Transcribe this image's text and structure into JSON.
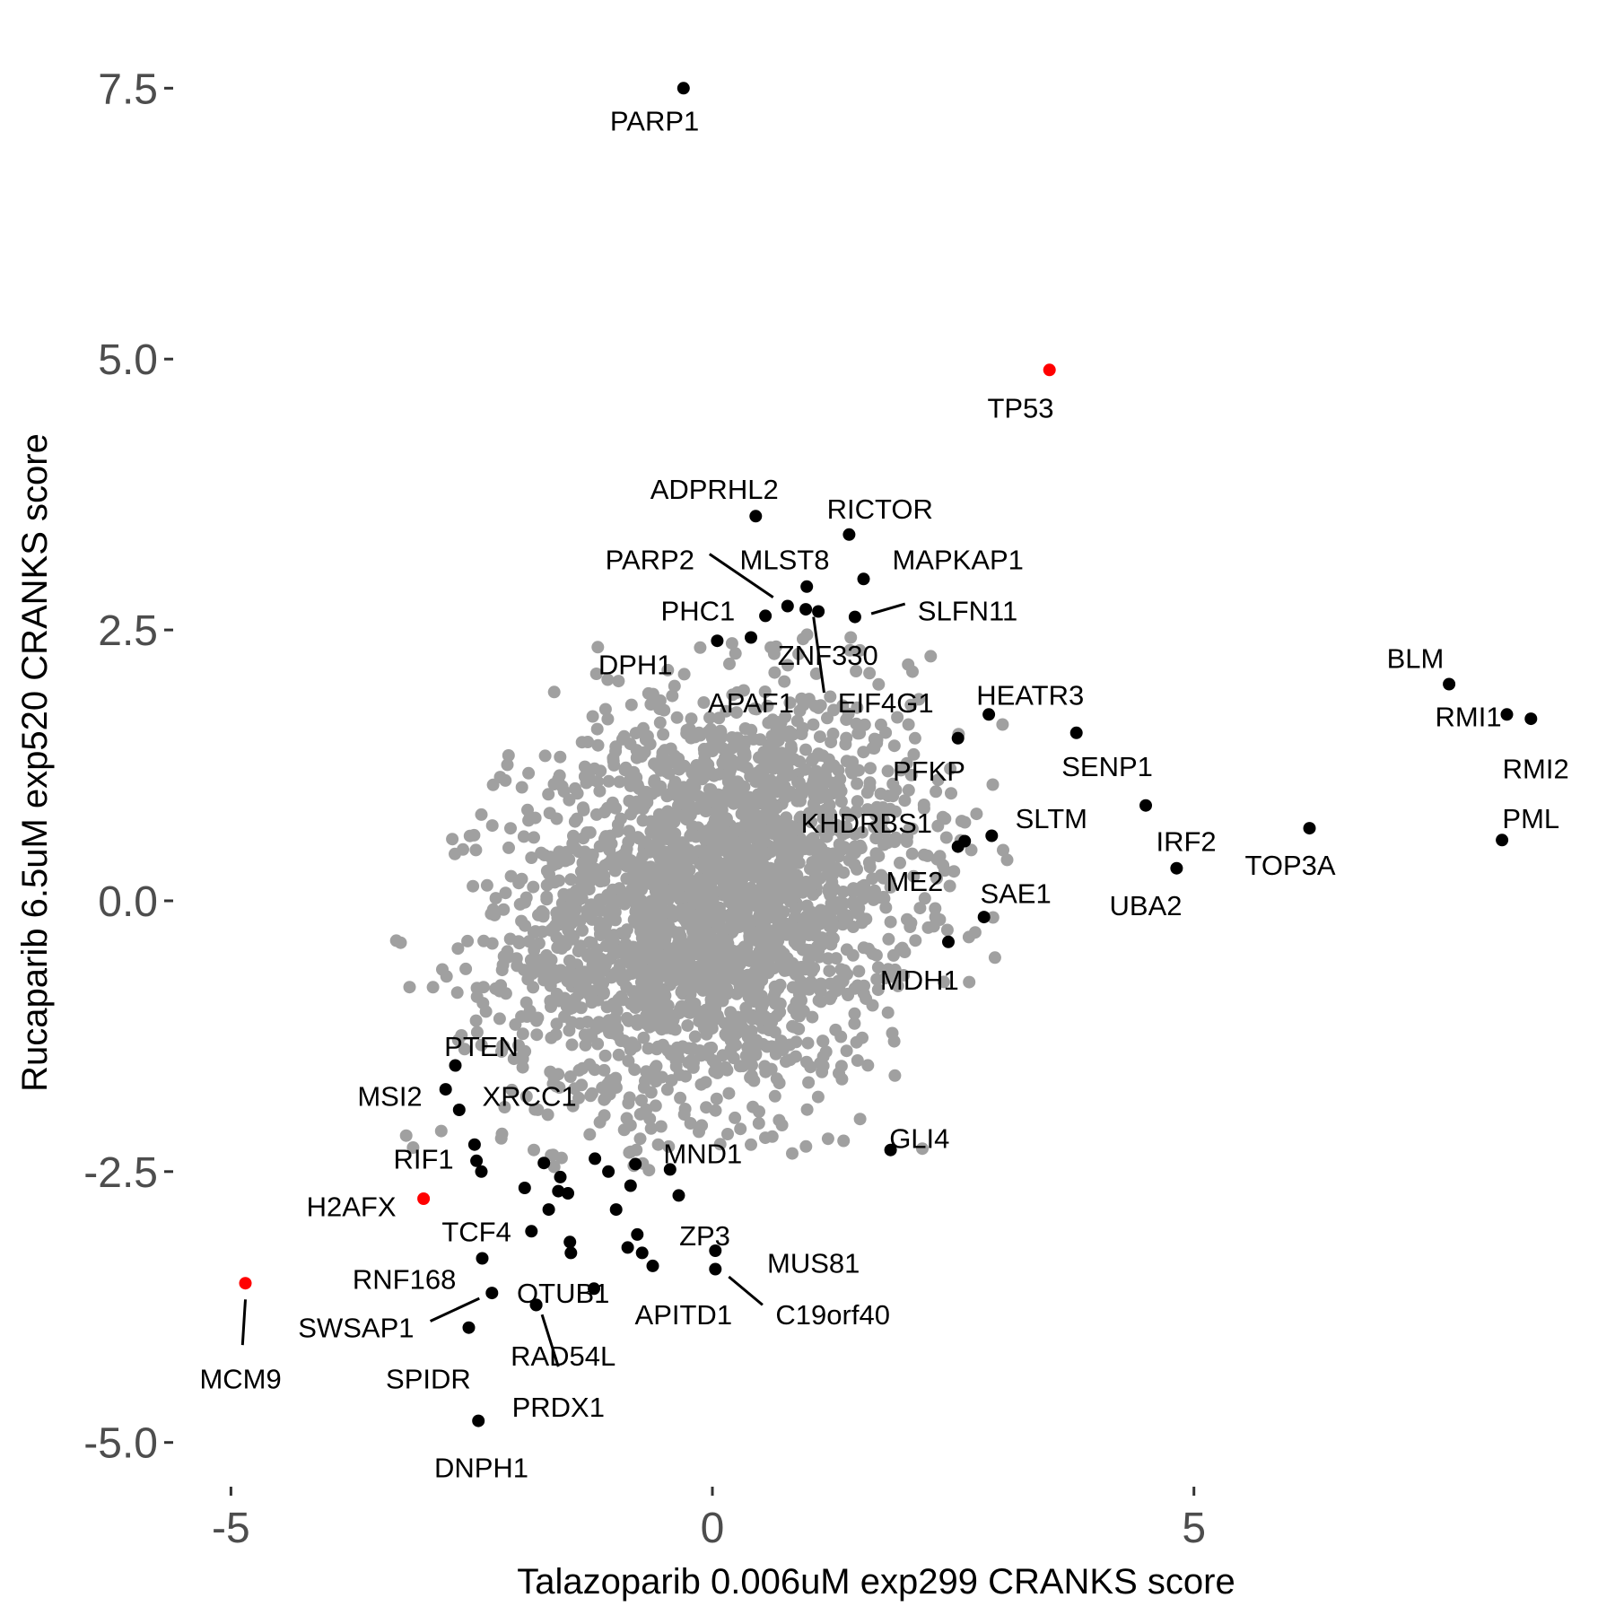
{
  "chart_data": {
    "type": "scatter",
    "xlabel": "Talazoparib 0.006uM exp299 CRANKS score",
    "ylabel": "Rucaparib 6.5uM exp520 CRANKS score",
    "xlim": [
      -5.6,
      9.0
    ],
    "ylim": [
      -5.35,
      7.9
    ],
    "x_ticks": [
      -5,
      0,
      5
    ],
    "x_tick_labels": [
      "-5",
      "0",
      "5"
    ],
    "y_ticks": [
      -5.0,
      -2.5,
      0.0,
      2.5,
      5.0,
      7.5
    ],
    "y_tick_labels": [
      "-5.0",
      "-2.5",
      "0.0",
      "2.5",
      "5.0",
      "7.5"
    ],
    "grid": false,
    "legend": "none",
    "colors": {
      "background": "#bfbfbf",
      "highlight": "#000000",
      "special": "#ff0000",
      "text": "#000000",
      "tick": "#4d4d4d"
    },
    "background_cloud": {
      "color": "#a0a0a0",
      "center": [
        0.0,
        0.0
      ],
      "sd": [
        1.05,
        0.95
      ],
      "correlation": 0.2
    },
    "points": [
      {
        "label": "PARP1",
        "x": -0.3,
        "y": 7.5,
        "color": "#000000"
      },
      {
        "label": "TP53",
        "x": 3.5,
        "y": 4.9,
        "color": "#ff0000"
      },
      {
        "label": "ADPRHL2",
        "x": 0.45,
        "y": 3.55,
        "color": "#000000"
      },
      {
        "label": "RICTOR",
        "x": 1.42,
        "y": 3.38,
        "color": "#000000"
      },
      {
        "label": "MAPKAP1",
        "x": 1.57,
        "y": 2.97,
        "color": "#000000"
      },
      {
        "label": "MLST8",
        "x": 0.98,
        "y": 2.9,
        "color": "#000000"
      },
      {
        "label": "PARP2",
        "x": 0.78,
        "y": 2.72,
        "color": "#000000"
      },
      {
        "label": "PHC1",
        "x": 0.55,
        "y": 2.63,
        "color": "#000000"
      },
      {
        "label": "ZNF330",
        "x": 0.97,
        "y": 2.69,
        "color": "#000000"
      },
      {
        "label": "EIF4G1",
        "x": 1.1,
        "y": 2.67,
        "color": "#000000"
      },
      {
        "label": "SLFN11",
        "x": 1.48,
        "y": 2.62,
        "color": "#000000"
      },
      {
        "label": "DPH1",
        "x": 0.05,
        "y": 2.4,
        "color": "#000000"
      },
      {
        "label": "APAF1",
        "x": 0.4,
        "y": 2.43,
        "color": "#000000"
      },
      {
        "label": "BLM",
        "x": 7.65,
        "y": 2.0,
        "color": "#000000"
      },
      {
        "label": "RMI1",
        "x": 8.25,
        "y": 1.72,
        "color": "#000000"
      },
      {
        "label": "RMI2",
        "x": 8.5,
        "y": 1.68,
        "color": "#000000"
      },
      {
        "label": "HEATR3",
        "x": 2.87,
        "y": 1.72,
        "color": "#000000"
      },
      {
        "label": "SENP1",
        "x": 3.78,
        "y": 1.55,
        "color": "#000000"
      },
      {
        "label": "PFKP",
        "x": 2.55,
        "y": 1.5,
        "color": "#000000"
      },
      {
        "label": "IRF2",
        "x": 4.5,
        "y": 0.88,
        "color": "#000000"
      },
      {
        "label": "TOP3A",
        "x": 6.2,
        "y": 0.67,
        "color": "#000000"
      },
      {
        "label": "PML",
        "x": 8.2,
        "y": 0.56,
        "color": "#000000"
      },
      {
        "label": "SLTM",
        "x": 2.9,
        "y": 0.6,
        "color": "#000000"
      },
      {
        "label": "KHDRBS1",
        "x": 2.62,
        "y": 0.55,
        "color": "#000000"
      },
      {
        "label": "ME2",
        "x": 2.55,
        "y": 0.5,
        "color": "#000000"
      },
      {
        "label": "UBA2",
        "x": 4.82,
        "y": 0.3,
        "color": "#000000"
      },
      {
        "label": "SAE1",
        "x": 2.82,
        "y": -0.15,
        "color": "#000000"
      },
      {
        "label": "MDH1",
        "x": 2.45,
        "y": -0.38,
        "color": "#000000"
      },
      {
        "label": "PTEN",
        "x": -2.67,
        "y": -1.52,
        "color": "#000000"
      },
      {
        "label": "MSI2",
        "x": -2.77,
        "y": -1.74,
        "color": "#000000"
      },
      {
        "label": "XRCC1",
        "x": -2.63,
        "y": -1.93,
        "color": "#000000"
      },
      {
        "label": "RIF1",
        "x": -2.47,
        "y": -2.25,
        "color": "#000000"
      },
      {
        "label": "H2AFX",
        "x": -3.0,
        "y": -2.75,
        "color": "#ff0000"
      },
      {
        "label": "TCF4",
        "x": -1.6,
        "y": -2.68,
        "color": "#000000"
      },
      {
        "label": "MND1",
        "x": -0.44,
        "y": -2.48,
        "color": "#000000"
      },
      {
        "label": "ZP3",
        "x": -0.35,
        "y": -2.72,
        "color": "#000000"
      },
      {
        "label": "GLI4",
        "x": 1.85,
        "y": -2.3,
        "color": "#000000"
      },
      {
        "label": "MUS81",
        "x": 0.03,
        "y": -3.23,
        "color": "#000000"
      },
      {
        "label": "C19orf40",
        "x": 0.03,
        "y": -3.4,
        "color": "#000000"
      },
      {
        "label": "APITD1",
        "x": -0.62,
        "y": -3.37,
        "color": "#000000"
      },
      {
        "label": "RNF168",
        "x": -2.39,
        "y": -3.3,
        "color": "#000000"
      },
      {
        "label": "OTUB1",
        "x": -1.23,
        "y": -3.58,
        "color": "#000000"
      },
      {
        "label": "SWSAP1",
        "x": -2.29,
        "y": -3.62,
        "color": "#000000"
      },
      {
        "label": "RAD54L",
        "x": -1.83,
        "y": -3.73,
        "color": "#000000"
      },
      {
        "label": "PRDX1",
        "x": -1.83,
        "y": -3.73,
        "color": "#000000"
      },
      {
        "label": "SPIDR",
        "x": -2.53,
        "y": -3.94,
        "color": "#000000"
      },
      {
        "label": "MCM9",
        "x": -4.85,
        "y": -3.53,
        "color": "#ff0000"
      },
      {
        "label": "DNPH1",
        "x": -2.43,
        "y": -4.8,
        "color": "#000000"
      }
    ],
    "unlabeled_points": [
      {
        "x": -2.45,
        "y": -2.4,
        "color": "#000000"
      },
      {
        "x": -2.4,
        "y": -2.5,
        "color": "#000000"
      },
      {
        "x": -1.95,
        "y": -2.65,
        "color": "#000000"
      },
      {
        "x": -1.75,
        "y": -2.42,
        "color": "#000000"
      },
      {
        "x": -1.58,
        "y": -2.55,
        "color": "#000000"
      },
      {
        "x": -1.5,
        "y": -2.7,
        "color": "#000000"
      },
      {
        "x": -1.7,
        "y": -2.85,
        "color": "#000000"
      },
      {
        "x": -1.22,
        "y": -2.38,
        "color": "#000000"
      },
      {
        "x": -1.08,
        "y": -2.5,
        "color": "#000000"
      },
      {
        "x": -1.0,
        "y": -2.85,
        "color": "#000000"
      },
      {
        "x": -0.85,
        "y": -2.63,
        "color": "#000000"
      },
      {
        "x": -0.8,
        "y": -2.43,
        "color": "#000000"
      },
      {
        "x": -1.88,
        "y": -3.05,
        "color": "#000000"
      },
      {
        "x": -1.48,
        "y": -3.15,
        "color": "#000000"
      },
      {
        "x": -1.47,
        "y": -3.25,
        "color": "#000000"
      },
      {
        "x": -0.88,
        "y": -3.2,
        "color": "#000000"
      },
      {
        "x": -0.78,
        "y": -3.08,
        "color": "#000000"
      },
      {
        "x": -0.73,
        "y": -3.25,
        "color": "#000000"
      }
    ],
    "leader_lines": [
      {
        "label": "PARP2",
        "from": [
          -0.03,
          3.2
        ],
        "to": [
          0.63,
          2.8
        ]
      },
      {
        "label": "EIF4G1",
        "from": [
          1.05,
          2.62
        ],
        "to": [
          1.16,
          1.92
        ]
      },
      {
        "label": "SLFN11",
        "from": [
          1.65,
          2.65
        ],
        "to": [
          2.0,
          2.74
        ]
      },
      {
        "label": "SWSAP1",
        "from": [
          -2.93,
          -3.88
        ],
        "to": [
          -2.42,
          -3.67
        ]
      },
      {
        "label": "PRDX1",
        "from": [
          -1.77,
          -3.82
        ],
        "to": [
          -1.6,
          -4.3
        ]
      },
      {
        "label": "MCM9",
        "from": [
          -4.85,
          -3.68
        ],
        "to": [
          -4.88,
          -4.1
        ]
      },
      {
        "label": "C19orf40",
        "from": [
          0.17,
          -3.47
        ],
        "to": [
          0.52,
          -3.73
        ]
      }
    ]
  },
  "labels": [
    {
      "text": "PARP1",
      "x": -0.6,
      "y": 7.2
    },
    {
      "text": "TP53",
      "x": 3.2,
      "y": 4.55
    },
    {
      "text": "ADPRHL2",
      "x": 0.02,
      "y": 3.8
    },
    {
      "text": "RICTOR",
      "x": 1.74,
      "y": 3.62
    },
    {
      "text": "MAPKAP1",
      "x": 2.55,
      "y": 3.15
    },
    {
      "text": "PARP2",
      "x": -0.65,
      "y": 3.15
    },
    {
      "text": "MLST8",
      "x": 0.75,
      "y": 3.15
    },
    {
      "text": "PHC1",
      "x": -0.15,
      "y": 2.68
    },
    {
      "text": "SLFN11",
      "x": 2.65,
      "y": 2.68
    },
    {
      "text": "ZNF330",
      "x": 1.2,
      "y": 2.27
    },
    {
      "text": "DPH1",
      "x": -0.8,
      "y": 2.18
    },
    {
      "text": "HEATR3",
      "x": 3.3,
      "y": 1.9
    },
    {
      "text": "BLM",
      "x": 7.3,
      "y": 2.24
    },
    {
      "text": "APAF1",
      "x": 0.4,
      "y": 1.83
    },
    {
      "text": "EIF4G1",
      "x": 1.8,
      "y": 1.83
    },
    {
      "text": "RMI1",
      "x": 7.85,
      "y": 1.7
    },
    {
      "text": "RMI2",
      "x": 8.55,
      "y": 1.22
    },
    {
      "text": "SENP1",
      "x": 4.1,
      "y": 1.24
    },
    {
      "text": "PFKP",
      "x": 2.25,
      "y": 1.2
    },
    {
      "text": "PML",
      "x": 8.5,
      "y": 0.76
    },
    {
      "text": "KHDRBS1",
      "x": 1.6,
      "y": 0.72
    },
    {
      "text": "SLTM",
      "x": 3.52,
      "y": 0.76
    },
    {
      "text": "IRF2",
      "x": 4.92,
      "y": 0.55
    },
    {
      "text": "TOP3A",
      "x": 6.0,
      "y": 0.33
    },
    {
      "text": "ME2",
      "x": 2.1,
      "y": 0.18
    },
    {
      "text": "SAE1",
      "x": 3.15,
      "y": 0.07
    },
    {
      "text": "UBA2",
      "x": 4.5,
      "y": -0.04
    },
    {
      "text": "MDH1",
      "x": 2.15,
      "y": -0.73
    },
    {
      "text": "PTEN",
      "x": -2.4,
      "y": -1.34
    },
    {
      "text": "MSI2",
      "x": -3.35,
      "y": -1.8
    },
    {
      "text": "XRCC1",
      "x": -1.9,
      "y": -1.8
    },
    {
      "text": "RIF1",
      "x": -3.0,
      "y": -2.38
    },
    {
      "text": "MND1",
      "x": -0.1,
      "y": -2.33
    },
    {
      "text": "GLI4",
      "x": 2.15,
      "y": -2.19
    },
    {
      "text": "H2AFX",
      "x": -3.75,
      "y": -2.82
    },
    {
      "text": "TCF4",
      "x": -2.45,
      "y": -3.05
    },
    {
      "text": "ZP3",
      "x": -0.08,
      "y": -3.09
    },
    {
      "text": "MUS81",
      "x": 1.05,
      "y": -3.34
    },
    {
      "text": "RNF168",
      "x": -3.2,
      "y": -3.49
    },
    {
      "text": "OTUB1",
      "x": -1.55,
      "y": -3.62
    },
    {
      "text": "APITD1",
      "x": -0.3,
      "y": -3.82
    },
    {
      "text": "C19orf40",
      "x": 1.25,
      "y": -3.82
    },
    {
      "text": "SWSAP1",
      "x": -3.7,
      "y": -3.94
    },
    {
      "text": "RAD54L",
      "x": -1.55,
      "y": -4.2
    },
    {
      "text": "MCM9",
      "x": -4.9,
      "y": -4.41
    },
    {
      "text": "SPIDR",
      "x": -2.95,
      "y": -4.41
    },
    {
      "text": "PRDX1",
      "x": -1.6,
      "y": -4.67
    },
    {
      "text": "DNPH1",
      "x": -2.4,
      "y": -5.23
    }
  ]
}
